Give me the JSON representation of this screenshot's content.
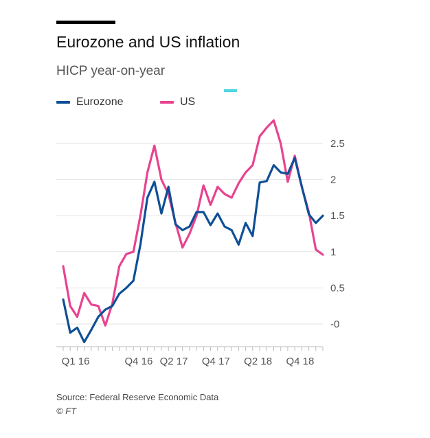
{
  "chart_data": {
    "type": "line",
    "title": "Eurozone and US inflation",
    "subtitle": "HICP year-on-year",
    "x_tick_labels": [
      "Q1 16",
      "Q4 16",
      "Q2 17",
      "Q4 17",
      "Q2 18",
      "Q4 18"
    ],
    "y_ticks": [
      {
        "value": 2.5,
        "label": "2.5"
      },
      {
        "value": 2,
        "label": "2"
      },
      {
        "value": 1.5,
        "label": "1.5"
      },
      {
        "value": 1,
        "label": "1"
      },
      {
        "value": 0.5,
        "label": "0.5"
      },
      {
        "value": 0,
        "label": "-0"
      }
    ],
    "ylim": [
      -0.3,
      2.85
    ],
    "grid": true,
    "y_axis_side": "right",
    "legend_position": "top-left",
    "series": [
      {
        "name": "Eurozone",
        "color": "#0f4f96",
        "values": [
          0.34,
          -0.12,
          -0.05,
          -0.25,
          -0.08,
          0.1,
          0.2,
          0.25,
          0.42,
          0.5,
          0.6,
          1.1,
          1.75,
          1.97,
          1.53,
          1.9,
          1.38,
          1.3,
          1.35,
          1.55,
          1.55,
          1.37,
          1.53,
          1.35,
          1.3,
          1.1,
          1.4,
          1.22,
          1.96,
          1.98,
          2.2,
          2.1,
          2.08,
          2.3,
          1.9,
          1.52,
          1.4,
          1.5
        ]
      },
      {
        "name": "US",
        "color": "#e8438f",
        "values": [
          0.8,
          0.25,
          0.1,
          0.43,
          0.27,
          0.25,
          -0.02,
          0.28,
          0.8,
          0.97,
          1.0,
          1.5,
          2.1,
          2.47,
          2.0,
          1.8,
          1.4,
          1.06,
          1.25,
          1.5,
          1.92,
          1.65,
          1.9,
          1.8,
          1.75,
          1.95,
          2.1,
          2.2,
          2.6,
          2.72,
          2.82,
          2.5,
          1.97,
          2.33,
          1.9,
          1.55,
          1.03,
          0.96
        ]
      }
    ]
  },
  "legend": {
    "items": [
      {
        "label": "Eurozone",
        "color": "#0f4f96"
      },
      {
        "label": "US",
        "color": "#e8438f"
      }
    ],
    "extra_color": "#4fd6e0"
  },
  "footer": {
    "source": "Source: Federal Reserve Economic Data",
    "credit": "© FT"
  }
}
